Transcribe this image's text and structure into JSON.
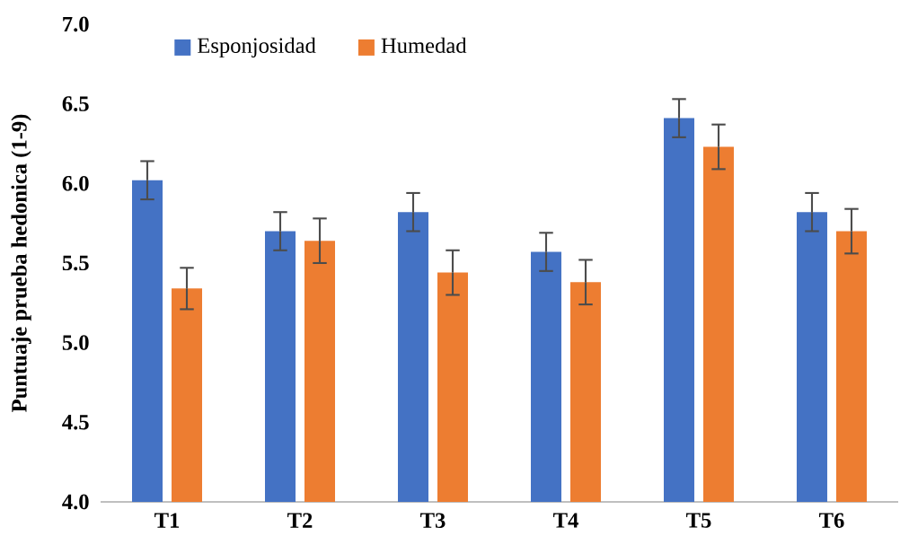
{
  "chart_data": {
    "type": "bar",
    "ylabel": "Puntuaje prueba hedonica (1-9)",
    "categories": [
      "T1",
      "T2",
      "T3",
      "T4",
      "T5",
      "T6"
    ],
    "series": [
      {
        "name": "Esponjosidad",
        "color": "#4472c4",
        "values": [
          6.02,
          5.7,
          5.82,
          5.57,
          6.41,
          5.82
        ],
        "errors": [
          0.12,
          0.12,
          0.12,
          0.12,
          0.12,
          0.12
        ]
      },
      {
        "name": "Humedad",
        "color": "#ed7d31",
        "values": [
          5.34,
          5.64,
          5.44,
          5.38,
          6.23,
          5.7
        ],
        "errors": [
          0.13,
          0.14,
          0.14,
          0.14,
          0.14,
          0.14
        ]
      }
    ],
    "ylim": [
      4,
      7
    ],
    "yticks": [
      {
        "value": 4,
        "label": "4.0"
      },
      {
        "value": 4.5,
        "label": "4.5"
      },
      {
        "value": 5,
        "label": "5.0"
      },
      {
        "value": 5.5,
        "label": "5.5"
      },
      {
        "value": 6,
        "label": "6.0"
      },
      {
        "value": 6.5,
        "label": "6.5"
      },
      {
        "value": 7,
        "label": "7.0"
      }
    ],
    "legend": "top left"
  }
}
